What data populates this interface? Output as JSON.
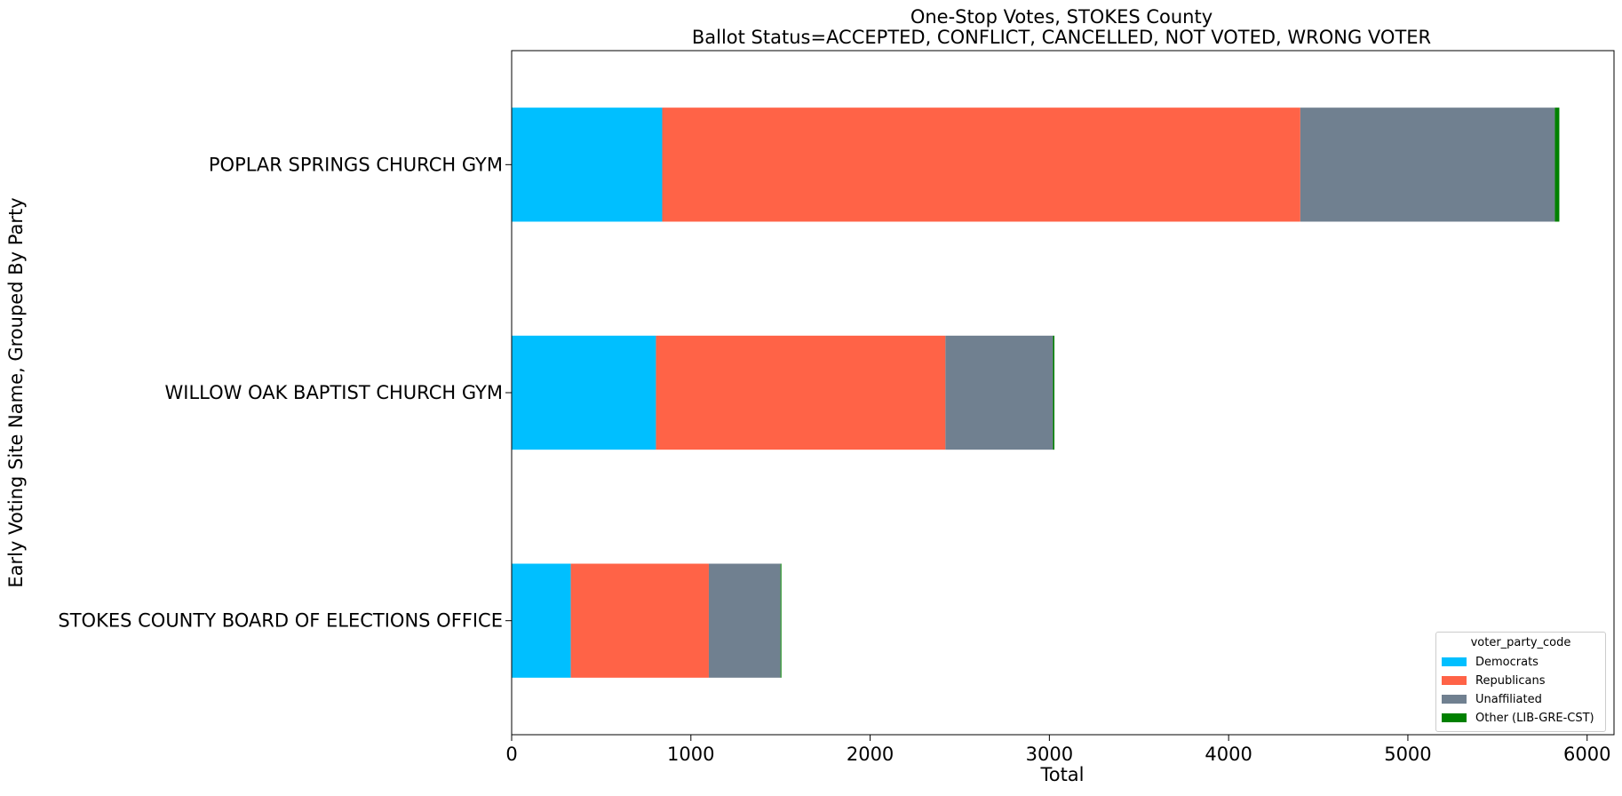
{
  "chart_data": {
    "type": "bar",
    "orientation": "horizontal",
    "stacked": true,
    "title": "One-Stop Votes, STOKES County",
    "subtitle": "Ballot Status=ACCEPTED, CONFLICT, CANCELLED, NOT VOTED, WRONG VOTER",
    "xlabel": "Total",
    "ylabel": "Early Voting Site Name, Grouped By Party",
    "xlim": [
      0,
      6150
    ],
    "xticks": [
      0,
      1000,
      2000,
      3000,
      4000,
      5000,
      6000
    ],
    "grid": false,
    "legend_title": "voter_party_code",
    "legend_position": "lower-right",
    "categories": [
      "POPLAR SPRINGS CHURCH GYM",
      "WILLOW OAK BAPTIST CHURCH GYM",
      "STOKES COUNTY BOARD OF ELECTIONS OFFICE"
    ],
    "series": [
      {
        "name": "Democrats",
        "color": "#00bfff",
        "values": [
          840,
          805,
          330
        ]
      },
      {
        "name": "Republicans",
        "color": "#ff6347",
        "values": [
          3560,
          1615,
          770
        ]
      },
      {
        "name": "Unaffiliated",
        "color": "#708090",
        "values": [
          1420,
          600,
          400
        ]
      },
      {
        "name": "Other (LIB-GRE-CST)",
        "color": "#008000",
        "values": [
          25,
          8,
          5
        ]
      }
    ]
  }
}
